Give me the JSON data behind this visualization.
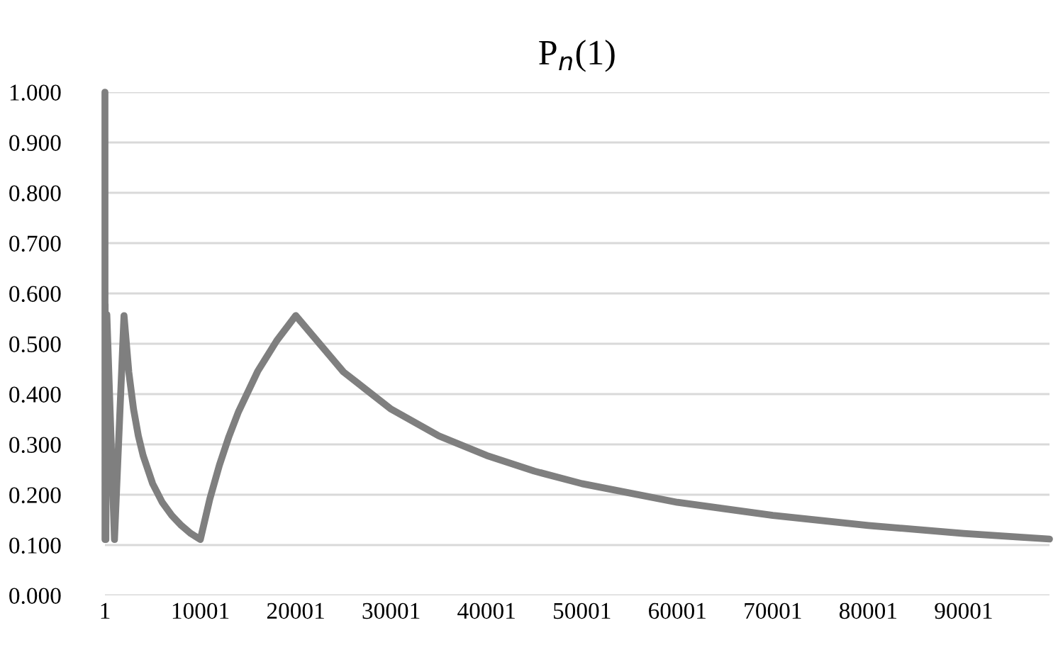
{
  "chart_data": {
    "type": "line",
    "title": "P$_{n}$(1)",
    "series": [
      {
        "color": "#7f7f7f",
        "x": [
          1,
          9,
          19,
          99,
          199,
          999,
          1999,
          2500,
          3000,
          3500,
          4000,
          5000,
          6000,
          7000,
          8000,
          9000,
          9999,
          11000,
          12000,
          13000,
          14000,
          16000,
          18000,
          19999,
          25000,
          30000,
          35000,
          40000,
          45000,
          50000,
          60000,
          70000,
          80000,
          90000,
          99000
        ],
        "values": [
          1.0,
          0.111,
          0.579,
          0.111,
          0.558,
          0.111,
          0.556,
          0.444,
          0.37,
          0.317,
          0.278,
          0.222,
          0.185,
          0.159,
          0.139,
          0.123,
          0.111,
          0.192,
          0.259,
          0.316,
          0.365,
          0.445,
          0.506,
          0.556,
          0.444,
          0.37,
          0.317,
          0.278,
          0.247,
          0.222,
          0.185,
          0.159,
          0.139,
          0.123,
          0.112
        ]
      }
    ],
    "xlim": [
      1,
      99000
    ],
    "xticks": [
      1,
      10001,
      20001,
      30001,
      40001,
      50001,
      60001,
      70001,
      80001,
      90001
    ],
    "ylim": [
      0,
      1
    ],
    "yticks": [
      {
        "value": 0,
        "label": "0.000"
      },
      {
        "value": 0.1,
        "label": "0.100"
      },
      {
        "value": 0.2,
        "label": "0.200"
      },
      {
        "value": 0.3,
        "label": "0.300"
      },
      {
        "value": 0.4,
        "label": "0.400"
      },
      {
        "value": 0.5,
        "label": "0.500"
      },
      {
        "value": 0.6,
        "label": "0.600"
      },
      {
        "value": 0.7,
        "label": "0.700"
      },
      {
        "value": 0.8,
        "label": "0.800"
      },
      {
        "value": 0.9,
        "label": "0.900"
      },
      {
        "value": 1,
        "label": "1.000"
      }
    ],
    "grid": "y",
    "legend": false,
    "marker": "none",
    "line_style": "solid"
  }
}
